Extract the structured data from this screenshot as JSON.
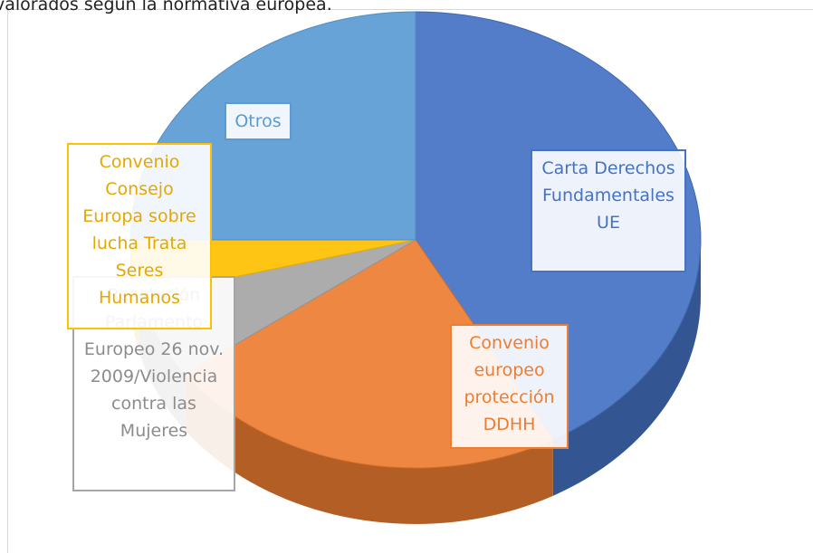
{
  "chart_data": {
    "type": "pie",
    "title": "valorados según la normativa europea.",
    "categories": [
      "Carta Derechos Fundamentales UE",
      "Convenio europeo protección DDHH",
      "Resolución Parlamento Europeo 26 nov. 2009/Violencia contra las Mujeres",
      "Convenio Consejo Europa sobre lucha Trata Seres Humanos",
      "Otros"
    ],
    "values": [
      42,
      23,
      6,
      4,
      25
    ],
    "colors": [
      "#4472c4",
      "#ed7d31",
      "#a5a5a5",
      "#ffc000",
      "#5b9bd5"
    ]
  }
}
